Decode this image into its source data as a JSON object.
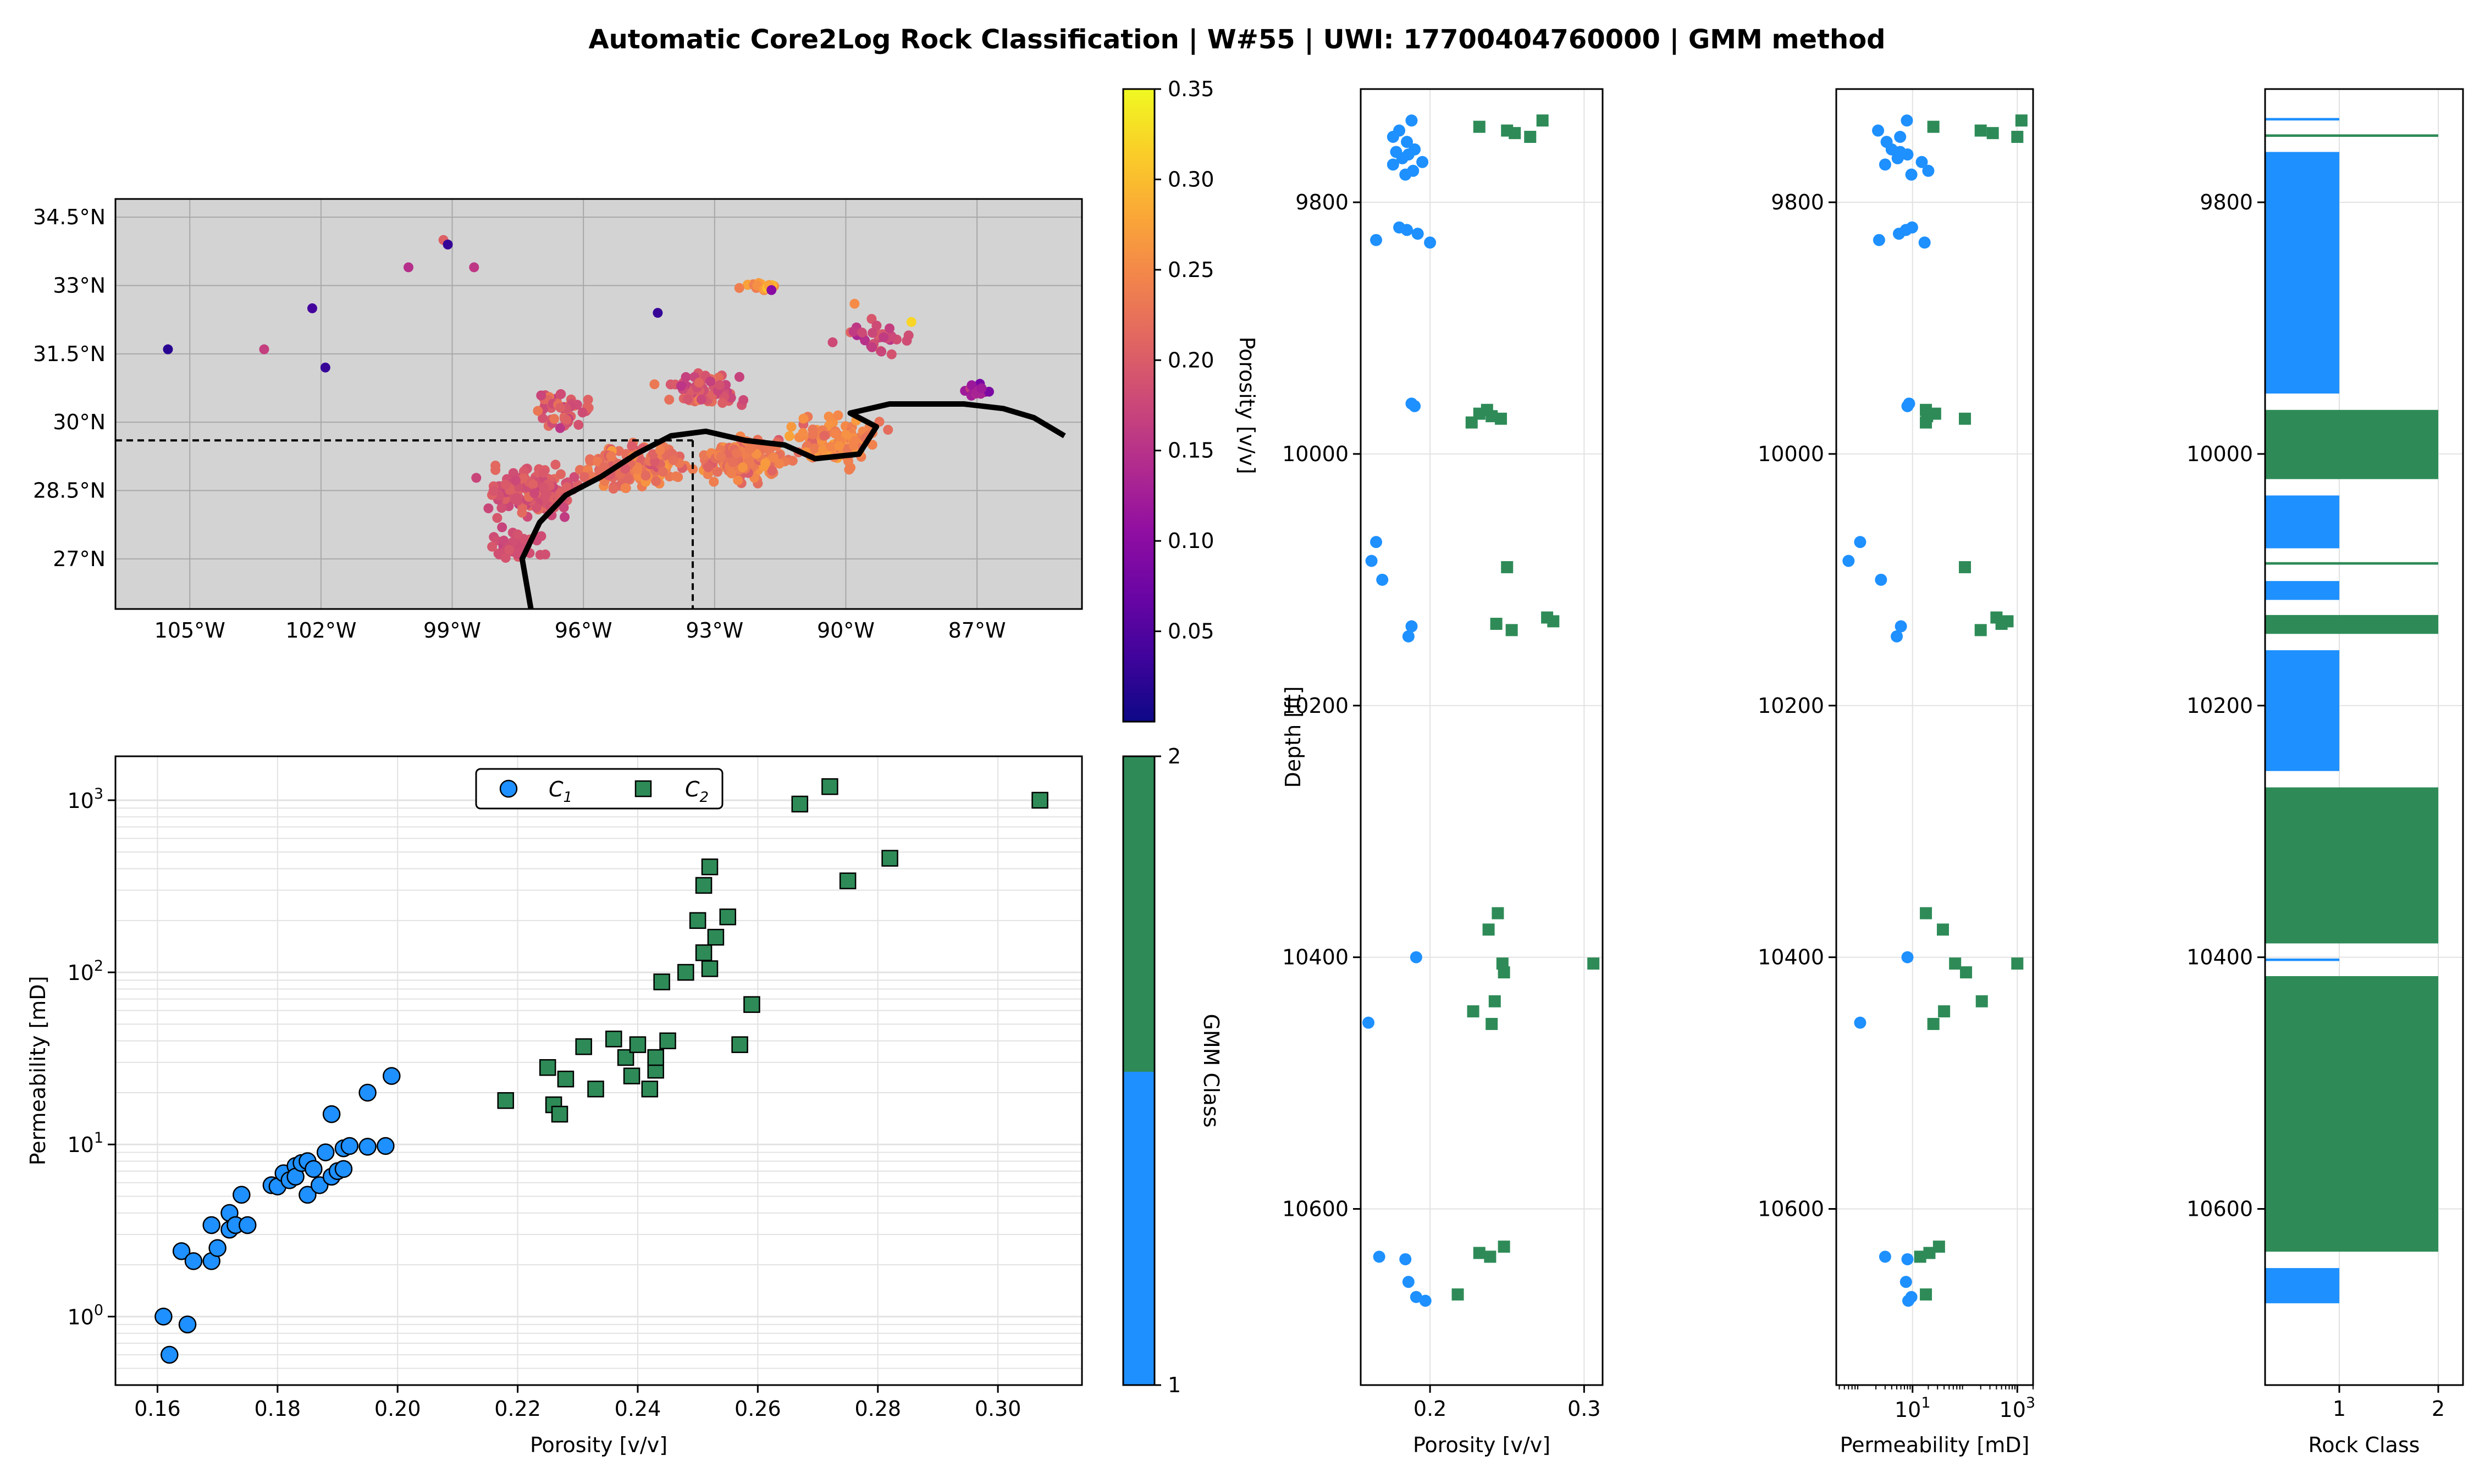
{
  "title": "Automatic Core2Log Rock Classification | W#55 | UWI: 17700404760000 | GMM method",
  "map": {
    "lat_ticks": [
      27,
      28.5,
      30,
      31.5,
      33,
      34.5
    ],
    "lat_labels": [
      "27°N",
      "28.5°N",
      "30°N",
      "31.5°N",
      "33°N",
      "34.5°N"
    ],
    "lon_ticks": [
      -105,
      -102,
      -99,
      -96,
      -93,
      -90,
      -87
    ],
    "lon_labels": [
      "105°W",
      "102°W",
      "99°W",
      "96°W",
      "93°W",
      "90°W",
      "87°W"
    ],
    "well_lon": -93.5,
    "well_lat": 29.6,
    "colorbar_label": "Porosity [v/v]",
    "colorbar_ticks": [
      "0.05",
      "0.10",
      "0.15",
      "0.20",
      "0.25",
      "0.30",
      "0.35"
    ],
    "colorbar_values": [
      0.05,
      0.1,
      0.15,
      0.2,
      0.25,
      0.3,
      0.35
    ],
    "colormap": "plasma",
    "background": "#d3d3d3"
  },
  "class_colorbar": {
    "label": "GMM Class",
    "ticks": [
      "1",
      "2"
    ]
  },
  "colors": {
    "c1": "#1e90ff",
    "c2": "#2e8b57"
  },
  "chart_data": [
    {
      "type": "scatter",
      "xlabel": "Porosity [v/v]",
      "ylabel": "Permeability [mD]",
      "yscale": "log",
      "xlim": [
        0.153,
        0.314
      ],
      "ylim": [
        0.4,
        1800
      ],
      "xticks": [
        "0.16",
        "0.18",
        "0.20",
        "0.22",
        "0.24",
        "0.26",
        "0.28",
        "0.30"
      ],
      "xtick_values": [
        0.16,
        0.18,
        0.2,
        0.22,
        0.24,
        0.26,
        0.28,
        0.3
      ],
      "yticks": [
        "10",
        "10",
        "10",
        "10"
      ],
      "ytick_exps": [
        "0",
        "1",
        "2",
        "3"
      ],
      "grid": true,
      "legend": "top-center",
      "series": [
        {
          "name": "C",
          "subscript": "1",
          "marker": "circle",
          "x": [
            0.161,
            0.162,
            0.164,
            0.165,
            0.166,
            0.169,
            0.169,
            0.17,
            0.172,
            0.172,
            0.173,
            0.174,
            0.175,
            0.179,
            0.18,
            0.181,
            0.182,
            0.183,
            0.183,
            0.184,
            0.185,
            0.185,
            0.186,
            0.187,
            0.188,
            0.189,
            0.189,
            0.19,
            0.191,
            0.191,
            0.192,
            0.195,
            0.195,
            0.198,
            0.199
          ],
          "y": [
            1.0,
            0.6,
            2.4,
            0.9,
            2.1,
            3.4,
            2.1,
            2.5,
            4.0,
            3.2,
            3.4,
            5.1,
            3.4,
            5.8,
            5.7,
            6.8,
            6.2,
            7.5,
            6.5,
            7.8,
            5.1,
            8.0,
            7.2,
            5.8,
            9.0,
            6.5,
            15,
            7.0,
            9.5,
            7.2,
            9.8,
            20,
            9.7,
            9.8,
            25
          ]
        },
        {
          "name": "C",
          "subscript": "2",
          "marker": "square",
          "x": [
            0.218,
            0.225,
            0.226,
            0.227,
            0.228,
            0.231,
            0.233,
            0.236,
            0.238,
            0.239,
            0.24,
            0.242,
            0.243,
            0.243,
            0.244,
            0.245,
            0.248,
            0.25,
            0.251,
            0.251,
            0.252,
            0.252,
            0.253,
            0.255,
            0.257,
            0.259,
            0.267,
            0.272,
            0.275,
            0.282,
            0.307
          ],
          "y": [
            18,
            28,
            17,
            15,
            24,
            37,
            21,
            41,
            32,
            25,
            38,
            21,
            27,
            32,
            88,
            40,
            100,
            200,
            320,
            130,
            410,
            105,
            160,
            210,
            38,
            65,
            950,
            1200,
            340,
            460,
            1000
          ]
        }
      ]
    },
    {
      "type": "scatter",
      "xlabel": "Porosity [v/v]",
      "ylabel": "Depth [ft]",
      "xlim": [
        0.155,
        0.312
      ],
      "ylim": [
        10740,
        9710
      ],
      "xticks": [
        "0.2",
        "0.3"
      ],
      "xtick_values": [
        0.2,
        0.3
      ],
      "yticks": [
        "9800",
        "10000",
        "10200",
        "10400",
        "10600"
      ],
      "ytick_values": [
        9800,
        10000,
        10200,
        10400,
        10600
      ],
      "series": [
        {
          "name": "",
          "marker": "circle",
          "depth": [
            9735,
            9743,
            9748,
            9752,
            9758,
            9760,
            9762,
            9765,
            9768,
            9770,
            9775,
            9778,
            9820,
            9822,
            9825,
            9830,
            9832,
            9960,
            9962,
            10070,
            10085,
            10100,
            10137,
            10145,
            10400,
            10452,
            10638,
            10640,
            10658,
            10670,
            10673
          ],
          "x": [
            0.188,
            0.18,
            0.176,
            0.185,
            0.19,
            0.178,
            0.186,
            0.182,
            0.195,
            0.176,
            0.189,
            0.184,
            0.18,
            0.185,
            0.192,
            0.165,
            0.2,
            0.188,
            0.19,
            0.165,
            0.162,
            0.169,
            0.188,
            0.186,
            0.191,
            0.16,
            0.167,
            0.184,
            0.186,
            0.191,
            0.197
          ]
        },
        {
          "name": "",
          "marker": "square",
          "depth": [
            9740,
            9743,
            9745,
            9748,
            9735,
            9965,
            9968,
            9970,
            9972,
            9975,
            10090,
            10135,
            10140,
            10130,
            10133,
            10365,
            10378,
            10405,
            10412,
            10405,
            10435,
            10443,
            10453,
            10630,
            10635,
            10638,
            10668
          ],
          "x": [
            0.232,
            0.25,
            0.255,
            0.265,
            0.273,
            0.237,
            0.232,
            0.24,
            0.246,
            0.227,
            0.25,
            0.243,
            0.253,
            0.276,
            0.28,
            0.244,
            0.238,
            0.247,
            0.248,
            0.306,
            0.242,
            0.228,
            0.24,
            0.248,
            0.232,
            0.239,
            0.218
          ]
        }
      ]
    },
    {
      "type": "scatter",
      "xlabel": "Permeability [mD]",
      "xscale": "log",
      "xlim": [
        0.35,
        2000
      ],
      "ylim": [
        10740,
        9710
      ],
      "xticks": [
        "10",
        "10"
      ],
      "xtick_exps": [
        "1",
        "3"
      ],
      "yticks": [
        "9800",
        "10000",
        "10200",
        "10400",
        "10600"
      ],
      "ytick_values": [
        9800,
        10000,
        10200,
        10400,
        10600
      ],
      "series": [
        {
          "name": "",
          "marker": "circle",
          "depth": [
            9735,
            9743,
            9748,
            9752,
            9758,
            9760,
            9762,
            9765,
            9768,
            9770,
            9775,
            9778,
            9820,
            9822,
            9825,
            9830,
            9832,
            9960,
            9962,
            10070,
            10085,
            10100,
            10137,
            10145,
            10400,
            10452,
            10638,
            10640,
            10658,
            10670,
            10673
          ],
          "x": [
            7.8,
            2.2,
            5.8,
            3.2,
            4.0,
            5.8,
            8.0,
            5.2,
            15,
            3.0,
            20,
            9.5,
            9.8,
            7.5,
            5.5,
            2.3,
            17,
            8.6,
            8.0,
            1.0,
            0.6,
            2.5,
            6.0,
            5.0,
            8.0,
            1.0,
            3.0,
            8.0,
            7.5,
            9.5,
            8.3
          ]
        },
        {
          "name": "",
          "marker": "square",
          "depth": [
            9740,
            9743,
            9745,
            9748,
            9735,
            9965,
            9968,
            9970,
            9972,
            9975,
            10090,
            10135,
            10140,
            10130,
            10133,
            10365,
            10378,
            10405,
            10412,
            10405,
            10435,
            10443,
            10453,
            10630,
            10635,
            10638,
            10668
          ],
          "x": [
            25,
            200,
            340,
            1000,
            1200,
            18,
            27,
            19,
            100,
            18,
            100,
            500,
            200,
            400,
            650,
            18,
            38,
            65,
            105,
            1000,
            210,
            40,
            25,
            32,
            21,
            14,
            18
          ]
        }
      ]
    },
    {
      "type": "bar",
      "orientation": "horizontal",
      "xlabel": "Rock Class",
      "xlim": [
        0.25,
        2.25
      ],
      "ylim": [
        10740,
        9710
      ],
      "xticks": [
        "1",
        "2"
      ],
      "xtick_values": [
        1,
        2
      ],
      "yticks": [
        "9800",
        "10000",
        "10200",
        "10400",
        "10600"
      ],
      "ytick_values": [
        9800,
        10000,
        10200,
        10400,
        10600
      ],
      "intervals": [
        {
          "class": 1,
          "top": 9733,
          "bottom": 9735
        },
        {
          "class": 2,
          "top": 9746,
          "bottom": 9748
        },
        {
          "class": 1,
          "top": 9760,
          "bottom": 9952
        },
        {
          "class": 2,
          "top": 9965,
          "bottom": 10020
        },
        {
          "class": 1,
          "top": 10033,
          "bottom": 10075
        },
        {
          "class": 2,
          "top": 10086,
          "bottom": 10088
        },
        {
          "class": 1,
          "top": 10101,
          "bottom": 10116
        },
        {
          "class": 2,
          "top": 10128,
          "bottom": 10143
        },
        {
          "class": 1,
          "top": 10156,
          "bottom": 10252
        },
        {
          "class": 2,
          "top": 10265,
          "bottom": 10389
        },
        {
          "class": 1,
          "top": 10401,
          "bottom": 10403
        },
        {
          "class": 2,
          "top": 10415,
          "bottom": 10634
        },
        {
          "class": 1,
          "top": 10647,
          "bottom": 10675
        }
      ]
    }
  ]
}
